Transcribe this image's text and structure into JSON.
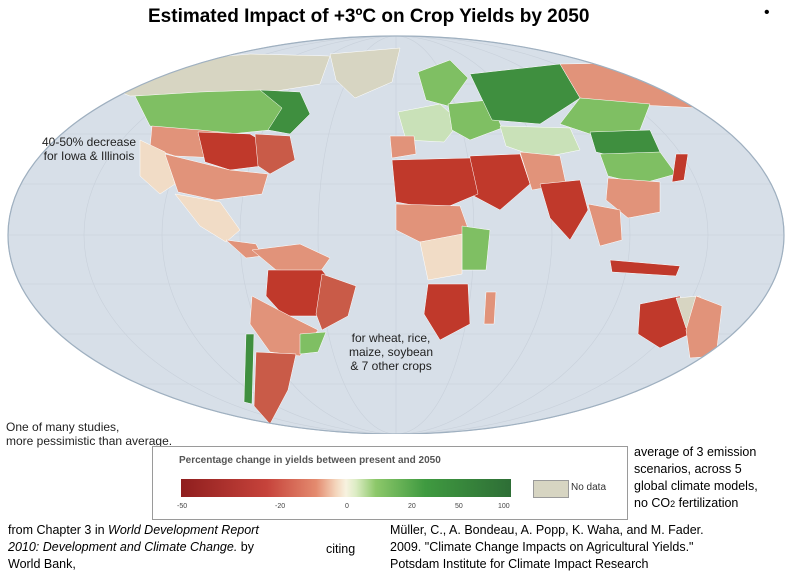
{
  "title": "Estimated Impact of +3ºC on Crop Yields by 2050",
  "corner_bullet": "•",
  "annotations": {
    "iowa_line1": "40-50% decrease",
    "iowa_line2": "for Iowa & Illinois",
    "crops_line1": "for wheat, rice,",
    "crops_line2": "maize, soybean",
    "crops_line3": "& 7 other crops",
    "studies_line1": "One of many studies,",
    "studies_line2": "more pessimistic than average."
  },
  "legend": {
    "title": "Percentage change in yields between present and 2050",
    "ticks": [
      "-50",
      "-20",
      "0",
      "20",
      "50",
      "100"
    ],
    "no_data_label": "No data"
  },
  "scenarios_note": {
    "line1": "average of 3 emission",
    "line2": "scenarios, across 5",
    "line3": "global climate models,",
    "line4_prefix": "no CO",
    "line4_sub": "2",
    "line4_suffix": " fertilization"
  },
  "citation_left": {
    "prefix": "from Chapter 3 in ",
    "title_part1": "World Development Report",
    "title_part2": "2010: Development and Climate Change.",
    "suffix": " by",
    "line3": "World Bank,"
  },
  "citing_label": "citing",
  "citation_right": {
    "line1": "Müller, C., A. Bondeau, A. Popp, K. Waha, and M. Fader.",
    "line2": "2009.  \"Climate Change Impacts on Agricultural Yields.\"",
    "line3": "Potsdam Institute for Climate Impact Research"
  },
  "colors": {
    "ocean": "#d7dfe8",
    "strong_loss": "#c0392b",
    "moderate_loss": "#e1937a",
    "slight_change": "#f1dcc6",
    "gain": "#7fbf63",
    "strong_gain": "#3f8f3f",
    "no_data": "#d7d5c2"
  }
}
